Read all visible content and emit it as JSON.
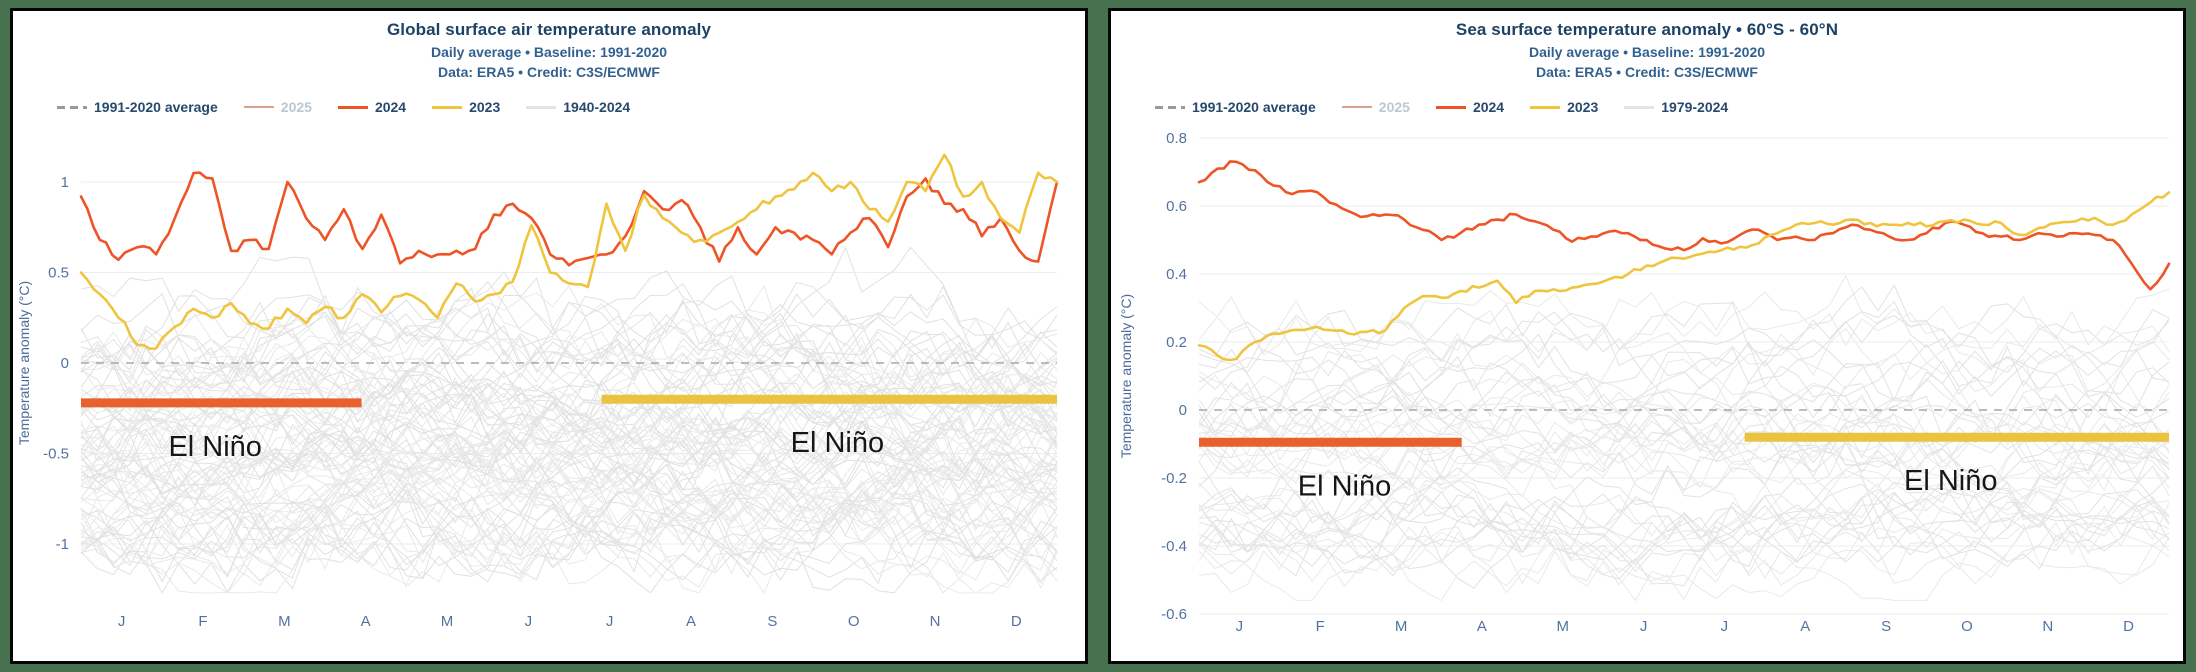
{
  "page": {
    "background_color": "#47714f",
    "panel_background": "#ffffff",
    "panel_border_color": "#060606"
  },
  "chart_data": [
    {
      "type": "line",
      "title": "Global surface air temperature anomaly",
      "subtitle1": "Daily average • Baseline: 1991-2020",
      "subtitle2": "Data: ERA5 • Credit: C3S/ECMWF",
      "ylabel": "Temperature anomaly (°C)",
      "ylim": [
        -1.3,
        1.3
      ],
      "yticks": [
        1,
        0.5,
        0,
        -0.5,
        -1
      ],
      "ytick_labels": [
        "1",
        "0.5",
        "0",
        "-0.5",
        "-1"
      ],
      "xtick_labels": [
        "J",
        "F",
        "M",
        "A",
        "M",
        "J",
        "J",
        "A",
        "S",
        "O",
        "N",
        "D"
      ],
      "grid": "horizontal",
      "legend_position": "top-left",
      "legend": [
        {
          "label": "1991-2020 average",
          "style": "dashed",
          "color": "#999999",
          "dimmed": false
        },
        {
          "label": "2025",
          "style": "solid",
          "color": "#dca091",
          "dimmed": true
        },
        {
          "label": "2024",
          "style": "solid",
          "color": "#ee5426",
          "dimmed": false
        },
        {
          "label": "2023",
          "style": "solid",
          "color": "#efc53f",
          "dimmed": false
        },
        {
          "label": "1940-2024",
          "style": "solid",
          "color": "#e4e4e4",
          "dimmed": false
        }
      ],
      "baseline": {
        "name": "1991-2020 average",
        "value": 0,
        "style": "dashed",
        "color": "#a7a7a7"
      },
      "series": [
        {
          "name": "2024",
          "color": "#ee5426",
          "jitter": 0.025,
          "weekly_values": [
            0.92,
            0.68,
            0.57,
            0.64,
            0.6,
            0.8,
            1.05,
            1.02,
            0.62,
            0.68,
            0.63,
            1.0,
            0.8,
            0.68,
            0.85,
            0.63,
            0.82,
            0.55,
            0.62,
            0.6,
            0.62,
            0.63,
            0.82,
            0.88,
            0.8,
            0.6,
            0.54,
            0.58,
            0.6,
            0.7,
            0.95,
            0.85,
            0.9,
            0.75,
            0.56,
            0.75,
            0.6,
            0.75,
            0.72,
            0.68,
            0.6,
            0.72,
            0.8,
            0.64,
            0.92,
            1.02,
            0.88,
            0.85,
            0.7,
            0.8,
            0.62,
            0.56,
            1.0
          ]
        },
        {
          "name": "2023",
          "color": "#efc53f",
          "jitter": 0.025,
          "weekly_values": [
            0.5,
            0.38,
            0.25,
            0.1,
            0.08,
            0.2,
            0.3,
            0.25,
            0.33,
            0.22,
            0.19,
            0.3,
            0.22,
            0.31,
            0.25,
            0.38,
            0.28,
            0.37,
            0.35,
            0.25,
            0.44,
            0.34,
            0.38,
            0.45,
            0.76,
            0.5,
            0.44,
            0.42,
            0.88,
            0.62,
            0.93,
            0.8,
            0.72,
            0.68,
            0.72,
            0.78,
            0.85,
            0.92,
            0.96,
            1.05,
            0.95,
            1.0,
            0.85,
            0.78,
            1.0,
            0.95,
            1.15,
            0.92,
            1.0,
            0.8,
            0.72,
            1.05,
            1.0
          ]
        }
      ],
      "background_series": {
        "name": "1940-2024",
        "count": 85,
        "color_a": "#e9e9e9",
        "color_b": "#e1e1e1",
        "base_min": -1.02,
        "base_span": 1.38,
        "wiggle": 0.3,
        "min": -1.27,
        "max": 0.9,
        "seed": 1234
      },
      "annotations": [
        {
          "label": "El Niño",
          "color": "#e7602e",
          "x_start_month": 0,
          "x_end_month": 3.45,
          "y": -0.22,
          "label_month": 1.65
        },
        {
          "label": "El Niño",
          "color": "#eac440",
          "x_start_month": 6.4,
          "x_end_month": 12,
          "y": -0.2,
          "label_month": 9.3
        }
      ]
    },
    {
      "type": "line",
      "title": "Sea surface temperature anomaly • 60°S - 60°N",
      "subtitle1": "Daily average • Baseline: 1991-2020",
      "subtitle2": "Data: ERA5 • Credit: C3S/ECMWF",
      "ylabel": "Temperature anomaly (°C)",
      "ylim": [
        -0.62,
        0.82
      ],
      "yticks": [
        0.8,
        0.6,
        0.4,
        0.2,
        0,
        -0.2,
        -0.4,
        -0.6
      ],
      "ytick_labels": [
        "0.8",
        "0.6",
        "0.4",
        "0.2",
        "0",
        "-0.2",
        "-0.4",
        "-0.6"
      ],
      "xtick_labels": [
        "J",
        "F",
        "M",
        "A",
        "M",
        "J",
        "J",
        "A",
        "S",
        "O",
        "N",
        "D"
      ],
      "grid": "horizontal",
      "legend_position": "top-left",
      "legend": [
        {
          "label": "1991-2020 average",
          "style": "dashed",
          "color": "#999999",
          "dimmed": false
        },
        {
          "label": "2025",
          "style": "solid",
          "color": "#dca091",
          "dimmed": true
        },
        {
          "label": "2024",
          "style": "solid",
          "color": "#ee5426",
          "dimmed": false
        },
        {
          "label": "2023",
          "style": "solid",
          "color": "#efc53f",
          "dimmed": false
        },
        {
          "label": "1979-2024",
          "style": "solid",
          "color": "#e4e4e4",
          "dimmed": false
        }
      ],
      "baseline": {
        "name": "1991-2020 average",
        "value": 0,
        "style": "dashed",
        "color": "#a7a7a7"
      },
      "series": [
        {
          "name": "2024",
          "color": "#ee5426",
          "jitter": 0.008,
          "weekly_values": [
            0.67,
            0.71,
            0.73,
            0.705,
            0.66,
            0.635,
            0.645,
            0.61,
            0.585,
            0.57,
            0.575,
            0.56,
            0.53,
            0.5,
            0.52,
            0.545,
            0.56,
            0.575,
            0.555,
            0.53,
            0.495,
            0.51,
            0.525,
            0.52,
            0.5,
            0.475,
            0.47,
            0.505,
            0.49,
            0.515,
            0.53,
            0.5,
            0.51,
            0.5,
            0.52,
            0.545,
            0.53,
            0.51,
            0.5,
            0.52,
            0.55,
            0.545,
            0.52,
            0.51,
            0.5,
            0.52,
            0.51,
            0.52,
            0.515,
            0.5,
            0.43,
            0.355,
            0.43
          ]
        },
        {
          "name": "2023",
          "color": "#efc53f",
          "jitter": 0.008,
          "weekly_values": [
            0.19,
            0.16,
            0.15,
            0.2,
            0.225,
            0.235,
            0.24,
            0.235,
            0.225,
            0.23,
            0.235,
            0.3,
            0.335,
            0.33,
            0.35,
            0.36,
            0.38,
            0.315,
            0.35,
            0.355,
            0.36,
            0.37,
            0.385,
            0.4,
            0.425,
            0.44,
            0.445,
            0.46,
            0.47,
            0.48,
            0.49,
            0.52,
            0.545,
            0.55,
            0.545,
            0.56,
            0.55,
            0.545,
            0.55,
            0.54,
            0.555,
            0.56,
            0.545,
            0.55,
            0.515,
            0.535,
            0.55,
            0.555,
            0.565,
            0.545,
            0.575,
            0.61,
            0.64
          ]
        }
      ],
      "background_series": {
        "name": "1979-2024",
        "count": 46,
        "color_a": "#e9e9e9",
        "color_b": "#e2e2e2",
        "base_min": -0.43,
        "base_span": 0.72,
        "wiggle": 0.14,
        "min": -0.56,
        "max": 0.44,
        "seed": 5678
      },
      "annotations": [
        {
          "label": "El Niño",
          "color": "#e7602e",
          "x_start_month": 0,
          "x_end_month": 3.25,
          "y": -0.095,
          "label_month": 1.8
        },
        {
          "label": "El Niño",
          "color": "#eac440",
          "x_start_month": 6.75,
          "x_end_month": 12,
          "y": -0.08,
          "label_month": 9.3
        }
      ]
    }
  ]
}
